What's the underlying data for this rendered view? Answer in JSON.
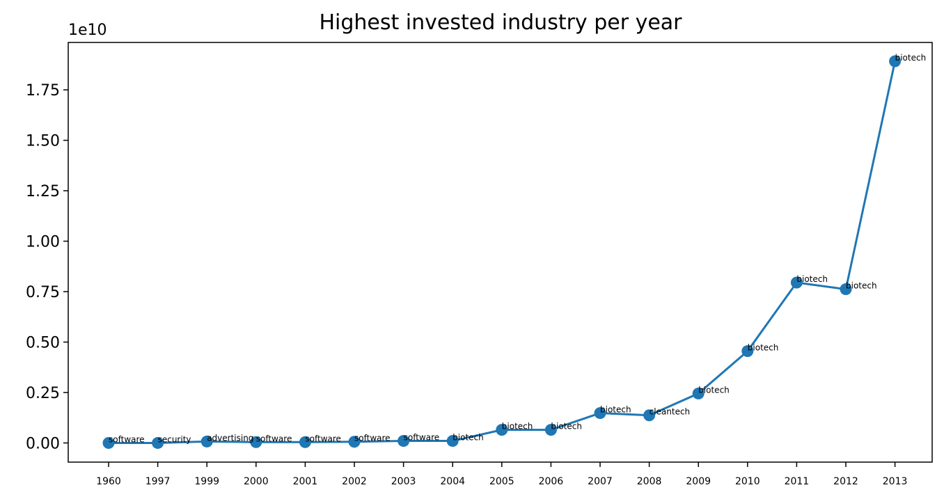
{
  "chart_data": {
    "type": "line",
    "title": "Highest invested industry per year",
    "xlabel": "",
    "ylabel": "",
    "y_offset_label": "1e10",
    "categories": [
      "1960",
      "1997",
      "1999",
      "2000",
      "2001",
      "2002",
      "2003",
      "2004",
      "2005",
      "2006",
      "2007",
      "2008",
      "2009",
      "2010",
      "2011",
      "2012",
      "2013"
    ],
    "values": [
      0.0,
      0.0,
      0.007,
      0.004,
      0.004,
      0.006,
      0.01,
      0.01,
      0.065,
      0.065,
      0.148,
      0.137,
      0.245,
      0.455,
      0.795,
      0.762,
      1.892
    ],
    "point_labels": [
      "software",
      "security",
      "advertising",
      "software",
      "software",
      "software",
      "software",
      "biotech",
      "biotech",
      "biotech",
      "biotech",
      "cleantech",
      "biotech",
      "biotech",
      "biotech",
      "biotech",
      "biotech"
    ],
    "yticks": [
      "0.00",
      "0.25",
      "0.50",
      "0.75",
      "1.00",
      "1.25",
      "1.50",
      "1.75"
    ],
    "ylim": [
      -0.095,
      1.985
    ],
    "grid": false,
    "color": "#1f77b4"
  }
}
